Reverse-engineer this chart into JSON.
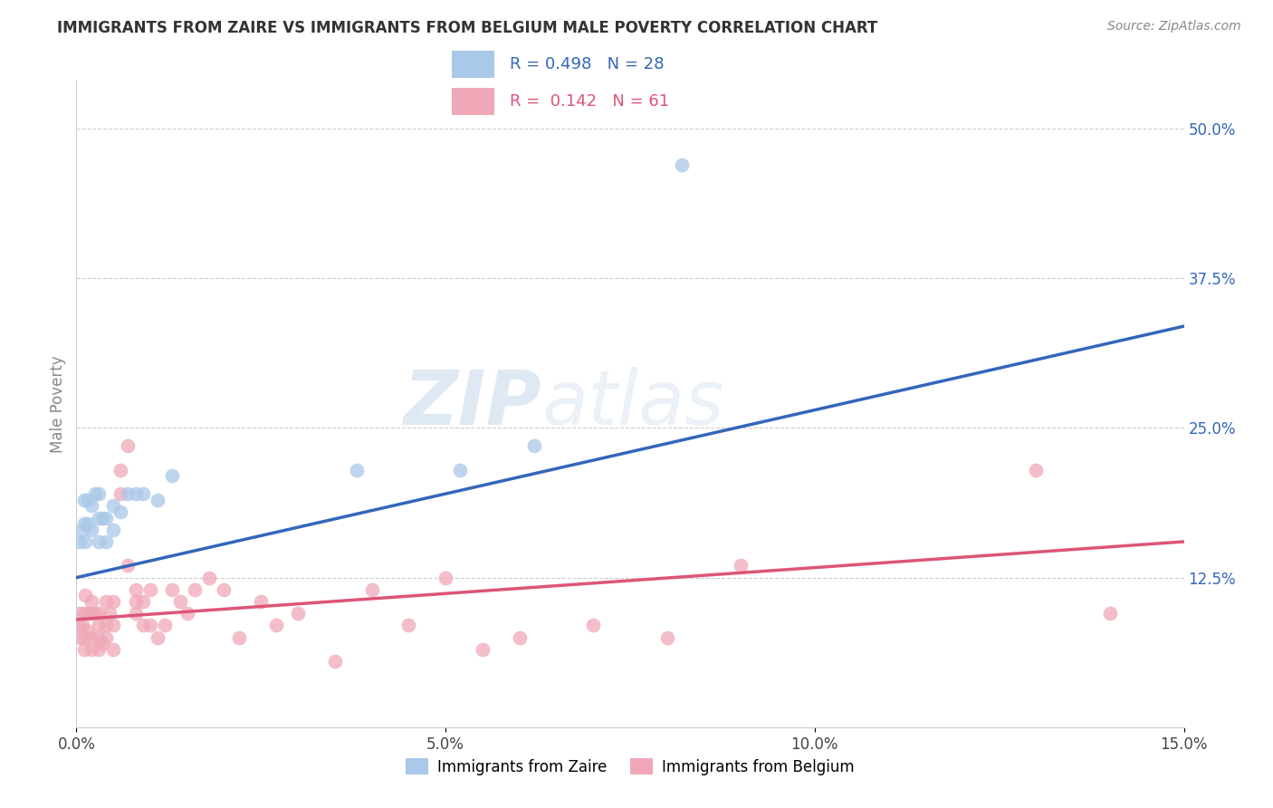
{
  "title": "IMMIGRANTS FROM ZAIRE VS IMMIGRANTS FROM BELGIUM MALE POVERTY CORRELATION CHART",
  "source": "Source: ZipAtlas.com",
  "ylabel": "Male Poverty",
  "xlim": [
    0.0,
    0.15
  ],
  "ylim": [
    0.0,
    0.54
  ],
  "xtick_vals": [
    0.0,
    0.05,
    0.1,
    0.15
  ],
  "xtick_labels": [
    "0.0%",
    "5.0%",
    "10.0%",
    "15.0%"
  ],
  "ytick_right_vals": [
    0.125,
    0.25,
    0.375,
    0.5
  ],
  "ytick_right_labels": [
    "12.5%",
    "25.0%",
    "37.5%",
    "50.0%"
  ],
  "legend_label1": "Immigrants from Zaire",
  "legend_label2": "Immigrants from Belgium",
  "R1": 0.498,
  "N1": 28,
  "R2": 0.142,
  "N2": 61,
  "color_blue": "#aac8e8",
  "color_blue_line": "#3366bb",
  "color_pink": "#f0a8b8",
  "color_pink_line": "#dd5577",
  "color_blue_text": "#3366bb",
  "color_pink_text": "#dd5577",
  "watermark_zip": "ZIP",
  "watermark_atlas": "atlas",
  "blue_line_x": [
    0.0,
    0.15
  ],
  "blue_line_y": [
    0.125,
    0.335
  ],
  "pink_line_x": [
    0.0,
    0.15
  ],
  "pink_line_y": [
    0.09,
    0.155
  ],
  "zaire_x": [
    0.0005,
    0.0008,
    0.001,
    0.001,
    0.0012,
    0.0015,
    0.0015,
    0.002,
    0.002,
    0.0025,
    0.003,
    0.003,
    0.003,
    0.0035,
    0.004,
    0.004,
    0.005,
    0.005,
    0.006,
    0.007,
    0.008,
    0.009,
    0.011,
    0.013,
    0.038,
    0.052,
    0.062,
    0.082
  ],
  "zaire_y": [
    0.155,
    0.165,
    0.17,
    0.19,
    0.155,
    0.17,
    0.19,
    0.165,
    0.185,
    0.195,
    0.155,
    0.175,
    0.195,
    0.175,
    0.155,
    0.175,
    0.165,
    0.185,
    0.18,
    0.195,
    0.195,
    0.195,
    0.19,
    0.21,
    0.215,
    0.215,
    0.235,
    0.47
  ],
  "belgium_x": [
    0.0003,
    0.0005,
    0.0005,
    0.0008,
    0.001,
    0.001,
    0.001,
    0.0012,
    0.0015,
    0.0015,
    0.002,
    0.002,
    0.002,
    0.002,
    0.0025,
    0.003,
    0.003,
    0.003,
    0.003,
    0.0035,
    0.004,
    0.004,
    0.004,
    0.0045,
    0.005,
    0.005,
    0.005,
    0.006,
    0.006,
    0.007,
    0.007,
    0.008,
    0.008,
    0.008,
    0.009,
    0.009,
    0.01,
    0.01,
    0.011,
    0.012,
    0.013,
    0.014,
    0.015,
    0.016,
    0.018,
    0.02,
    0.022,
    0.025,
    0.027,
    0.03,
    0.035,
    0.04,
    0.045,
    0.05,
    0.055,
    0.06,
    0.07,
    0.08,
    0.09,
    0.13,
    0.14
  ],
  "belgium_y": [
    0.085,
    0.075,
    0.095,
    0.085,
    0.095,
    0.075,
    0.065,
    0.11,
    0.08,
    0.095,
    0.095,
    0.075,
    0.105,
    0.065,
    0.095,
    0.085,
    0.075,
    0.065,
    0.095,
    0.07,
    0.105,
    0.085,
    0.075,
    0.095,
    0.085,
    0.105,
    0.065,
    0.195,
    0.215,
    0.235,
    0.135,
    0.115,
    0.105,
    0.095,
    0.105,
    0.085,
    0.085,
    0.115,
    0.075,
    0.085,
    0.115,
    0.105,
    0.095,
    0.115,
    0.125,
    0.115,
    0.075,
    0.105,
    0.085,
    0.095,
    0.055,
    0.115,
    0.085,
    0.125,
    0.065,
    0.075,
    0.085,
    0.075,
    0.135,
    0.215,
    0.095
  ]
}
